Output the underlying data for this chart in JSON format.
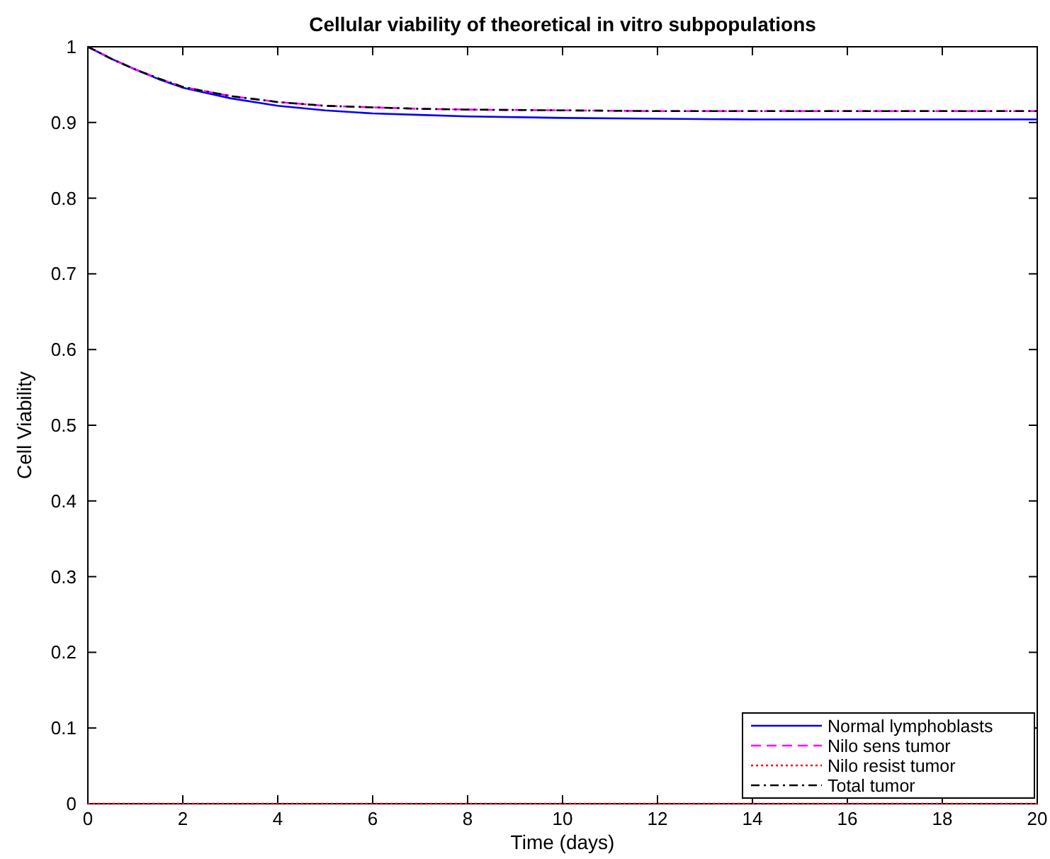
{
  "chart_data": {
    "type": "line",
    "title": "Cellular viability of theoretical in vitro subpopulations",
    "xlabel": "Time (days)",
    "ylabel": "Cell Viability",
    "x": [
      0,
      0.5,
      1,
      1.5,
      2,
      3,
      4,
      5,
      6,
      7,
      8,
      10,
      12,
      14,
      16,
      18,
      20
    ],
    "series": [
      {
        "name": "Normal lymphoblasts",
        "color": "#0000ff",
        "line_style": "solid",
        "values": [
          1,
          0.984,
          0.97,
          0.957,
          0.946,
          0.932,
          0.922,
          0.916,
          0.912,
          0.91,
          0.908,
          0.906,
          0.905,
          0.904,
          0.904,
          0.904,
          0.904
        ]
      },
      {
        "name": "Nilo sens tumor",
        "color": "#ff00ff",
        "line_style": "dashed",
        "values": [
          1,
          0.984,
          0.97,
          0.958,
          0.947,
          0.935,
          0.927,
          0.922,
          0.92,
          0.918,
          0.917,
          0.916,
          0.915,
          0.915,
          0.915,
          0.915,
          0.915
        ]
      },
      {
        "name": "Nilo resist tumor",
        "color": "#ff0000",
        "line_style": "dotted",
        "values": [
          0,
          0,
          0,
          0,
          0,
          0,
          0,
          0,
          0,
          0,
          0,
          0,
          0,
          0,
          0,
          0,
          0
        ]
      },
      {
        "name": "Total tumor",
        "color": "#000000",
        "line_style": "dashdot",
        "values": [
          1,
          0.984,
          0.97,
          0.958,
          0.947,
          0.935,
          0.927,
          0.922,
          0.92,
          0.918,
          0.917,
          0.916,
          0.915,
          0.915,
          0.915,
          0.915,
          0.915
        ]
      }
    ],
    "xlim": [
      0,
      20
    ],
    "xticks": [
      0,
      2,
      4,
      6,
      8,
      10,
      12,
      14,
      16,
      18,
      20
    ],
    "ylim": [
      0,
      1
    ],
    "yticks": [
      0,
      0.1,
      0.2,
      0.3,
      0.4,
      0.5,
      0.6,
      0.7,
      0.8,
      0.9,
      1
    ],
    "legend": "bottom right",
    "grid": false,
    "marker": "none"
  }
}
